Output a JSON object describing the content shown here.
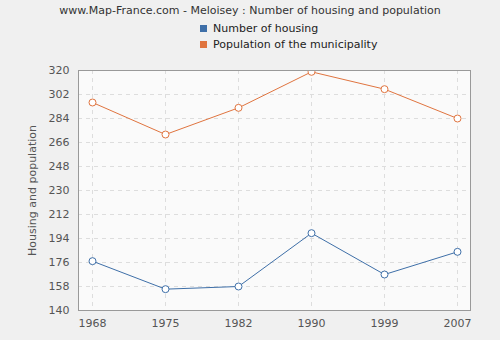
{
  "chart_data": {
    "type": "line",
    "title": "www.Map-France.com - Meloisey : Number of housing and population",
    "y_label": "Housing and population",
    "categories": [
      "1968",
      "1975",
      "1982",
      "1990",
      "1999",
      "2007"
    ],
    "series": [
      {
        "name": "Number of housing",
        "color": "#3e6fa8",
        "marker": "circle",
        "values": [
          177,
          156,
          158,
          198,
          167,
          184
        ]
      },
      {
        "name": "Population of the municipality",
        "color": "#e0743f",
        "marker": "circle",
        "values": [
          296,
          272,
          292,
          319,
          306,
          284
        ]
      }
    ],
    "ylim": [
      140,
      320
    ],
    "yticks": [
      140,
      158,
      176,
      194,
      212,
      230,
      248,
      266,
      284,
      302,
      320
    ],
    "grid": true,
    "legend": "top"
  }
}
